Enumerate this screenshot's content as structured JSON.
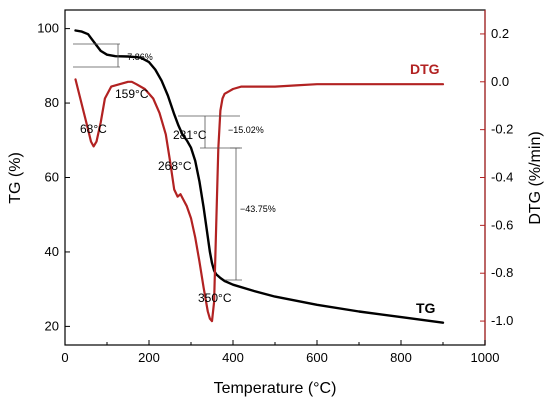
{
  "chart_data": {
    "type": "line",
    "xlabel": "Temperature (°C)",
    "ylabel_left": "TG (%)",
    "ylabel_right": "DTG (%/min)",
    "xlim": [
      0,
      1000
    ],
    "ylim_left": [
      15,
      105
    ],
    "ylim_right": [
      -1.1,
      0.3
    ],
    "x_ticks": [
      "0",
      "200",
      "400",
      "600",
      "800",
      "1000"
    ],
    "y_left_ticks": [
      "20",
      "40",
      "60",
      "80",
      "100"
    ],
    "y_right_ticks": [
      "0.2",
      "0.0",
      "-0.2",
      "-0.4",
      "-0.6",
      "-0.8",
      "-1.0"
    ],
    "colors": {
      "tg": "#000000",
      "dtg": "#b22222",
      "right_axis": "#b22222"
    },
    "series": [
      {
        "name": "TG",
        "axis": "left",
        "x": [
          25,
          40,
          55,
          65,
          75,
          85,
          100,
          120,
          150,
          180,
          200,
          215,
          230,
          245,
          260,
          270,
          280,
          290,
          300,
          310,
          320,
          330,
          340,
          345,
          350,
          355,
          360,
          365,
          370,
          380,
          400,
          450,
          500,
          600,
          700,
          800,
          900
        ],
        "y": [
          99.5,
          99.2,
          98.5,
          97.0,
          95.5,
          94.0,
          93.0,
          92.6,
          92.5,
          92.2,
          91.0,
          89.0,
          86.0,
          82.0,
          77.0,
          74.0,
          71.5,
          70.0,
          68.0,
          64.5,
          59.0,
          52.0,
          44.0,
          40.0,
          37.0,
          35.0,
          34.0,
          33.5,
          33.0,
          32.2,
          31.2,
          29.5,
          28.0,
          25.8,
          24.0,
          22.5,
          21.0
        ]
      },
      {
        "name": "DTG",
        "axis": "right",
        "x": [
          25,
          35,
          45,
          55,
          62,
          68,
          75,
          85,
          95,
          110,
          130,
          150,
          159,
          170,
          190,
          210,
          225,
          240,
          250,
          260,
          268,
          275,
          281,
          290,
          300,
          310,
          320,
          330,
          340,
          345,
          350,
          355,
          360,
          365,
          370,
          375,
          380,
          390,
          400,
          420,
          450,
          500,
          550,
          600,
          650,
          700,
          750,
          800,
          850,
          900
        ],
        "y": [
          0.01,
          -0.06,
          -0.13,
          -0.2,
          -0.25,
          -0.27,
          -0.25,
          -0.17,
          -0.07,
          -0.02,
          -0.01,
          0.0,
          0.0,
          -0.01,
          -0.03,
          -0.07,
          -0.13,
          -0.22,
          -0.33,
          -0.45,
          -0.48,
          -0.47,
          -0.49,
          -0.52,
          -0.57,
          -0.65,
          -0.75,
          -0.86,
          -0.96,
          -0.99,
          -1.0,
          -0.92,
          -0.6,
          -0.28,
          -0.12,
          -0.07,
          -0.05,
          -0.04,
          -0.03,
          -0.02,
          -0.02,
          -0.02,
          -0.015,
          -0.01,
          -0.01,
          -0.01,
          -0.01,
          -0.01,
          -0.01,
          -0.01
        ]
      }
    ],
    "annotations": {
      "mass_losses": [
        "−7.86%",
        "−15.02%",
        "−43.75%"
      ],
      "peaks": [
        {
          "label": "68°C",
          "x": 68
        },
        {
          "label": "159°C",
          "x": 159
        },
        {
          "label": "268°C",
          "x": 268
        },
        {
          "label": "281°C",
          "x": 281
        },
        {
          "label": "350°C",
          "x": 350
        }
      ],
      "series_labels": {
        "tg": "TG",
        "dtg": "DTG"
      }
    }
  }
}
